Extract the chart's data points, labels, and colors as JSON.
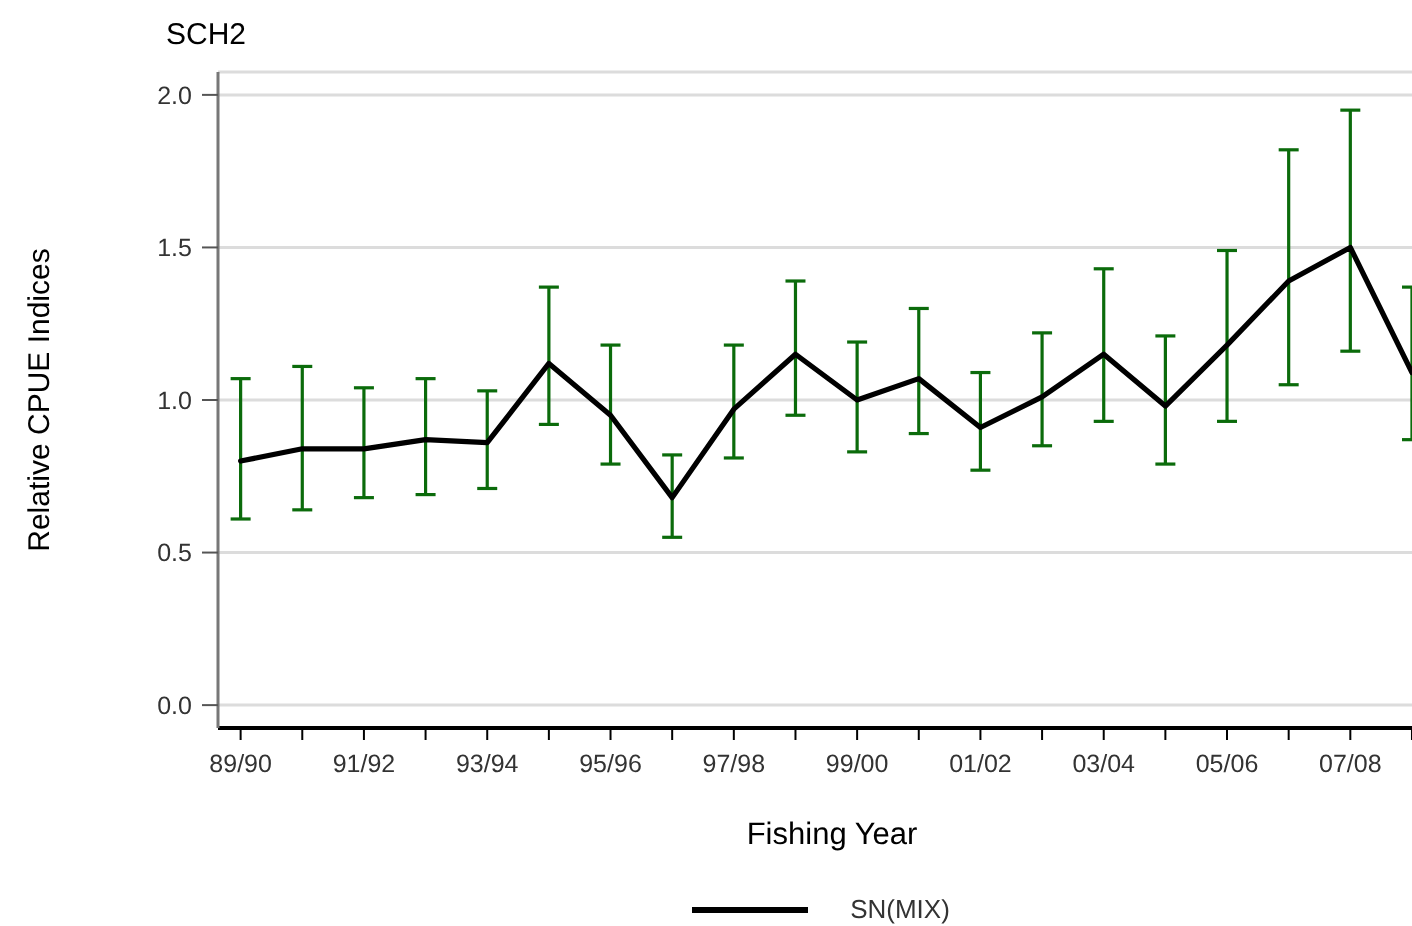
{
  "chart_data": {
    "type": "line",
    "title": "SCH2",
    "xlabel": "Fishing Year",
    "ylabel": "Relative CPUE Indices",
    "categories": [
      "89/90",
      null,
      "91/92",
      null,
      "93/94",
      null,
      "95/96",
      null,
      "97/98",
      null,
      "99/00",
      null,
      "01/02",
      null,
      "03/04",
      null,
      "05/06",
      null,
      "07/08",
      null
    ],
    "series": [
      {
        "name": "SN(MIX)",
        "color": "#000000",
        "values": [
          0.8,
          0.84,
          0.84,
          0.87,
          0.86,
          1.12,
          0.95,
          0.68,
          0.97,
          1.15,
          1.0,
          1.07,
          0.91,
          1.01,
          1.15,
          0.98,
          1.18,
          1.39,
          1.5,
          1.09
        ],
        "errors": [
          [
            0.61,
            1.07
          ],
          [
            0.64,
            1.11
          ],
          [
            0.68,
            1.04
          ],
          [
            0.69,
            1.07
          ],
          [
            0.71,
            1.03
          ],
          [
            0.92,
            1.37
          ],
          [
            0.79,
            1.18
          ],
          [
            0.55,
            0.82
          ],
          [
            0.81,
            1.18
          ],
          [
            0.95,
            1.39
          ],
          [
            0.83,
            1.19
          ],
          [
            0.89,
            1.3
          ],
          [
            0.77,
            1.09
          ],
          [
            0.85,
            1.22
          ],
          [
            0.93,
            1.43
          ],
          [
            0.79,
            1.21
          ],
          [
            0.93,
            1.49
          ],
          [
            1.05,
            1.82
          ],
          [
            1.16,
            1.95
          ],
          [
            0.87,
            1.37
          ]
        ]
      }
    ],
    "ylim": [
      -0.075,
      2.075
    ],
    "yticks": [
      {
        "value": 0,
        "label": "0.0"
      },
      0.5,
      {
        "value": 1,
        "label": "1.0"
      },
      1.5,
      {
        "value": 2,
        "label": "2.0"
      }
    ],
    "grid": "y",
    "legend": "bottom",
    "marker": "none",
    "line_style": "solid"
  }
}
